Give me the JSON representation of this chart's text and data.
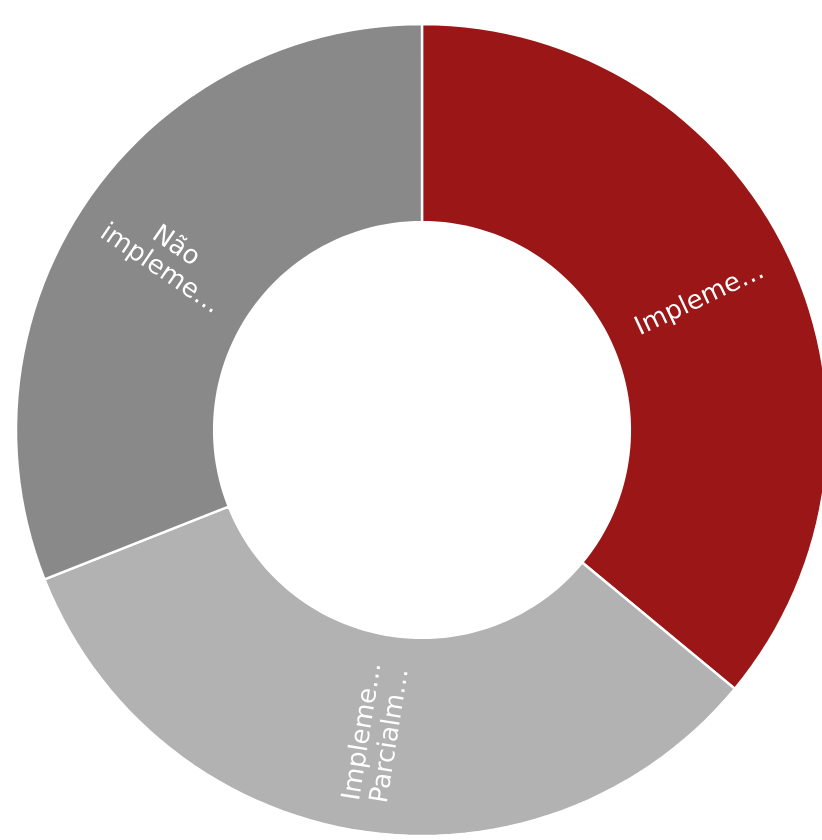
{
  "chart_data": {
    "type": "donut",
    "categories": [
      "Impleme…",
      "Impleme… Parcialm…",
      "Não impleme…"
    ],
    "values": [
      36,
      33,
      31
    ],
    "colors": [
      "#9b1616",
      "#b2b2b2",
      "#898989"
    ]
  }
}
